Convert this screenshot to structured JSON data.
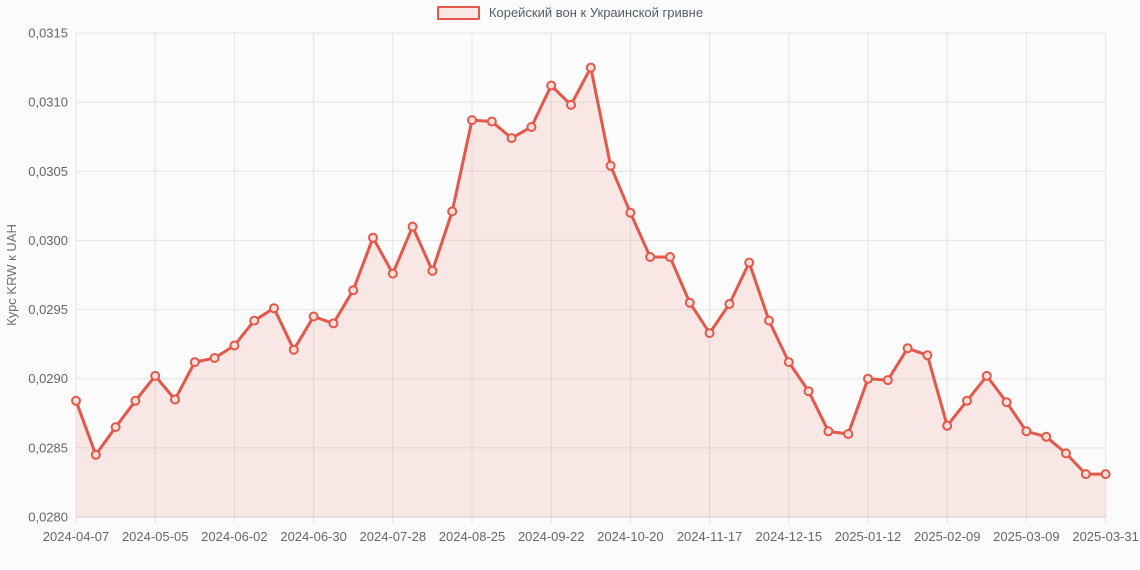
{
  "legend": {
    "label": "Корейский вон к Украинской гривне"
  },
  "colors": {
    "line": "#e3584a",
    "area_fill": "#e3584a",
    "area_opacity": 0.12,
    "marker_fill": "#f9e0da",
    "swatch_fill": "#f8e7e2",
    "grid": "#e4e4e4",
    "axis_text": "#666666"
  },
  "chart_data": {
    "type": "area",
    "title": "",
    "xlabel": "",
    "ylabel": "Курс KRW к UAH",
    "ylim": [
      0.028,
      0.0315
    ],
    "grid": true,
    "legend_position": "top",
    "x": [
      "2024-04-07",
      "2024-04-14",
      "2024-04-21",
      "2024-04-28",
      "2024-05-05",
      "2024-05-12",
      "2024-05-19",
      "2024-05-26",
      "2024-06-02",
      "2024-06-09",
      "2024-06-16",
      "2024-06-23",
      "2024-06-30",
      "2024-07-07",
      "2024-07-14",
      "2024-07-21",
      "2024-07-28",
      "2024-08-04",
      "2024-08-11",
      "2024-08-18",
      "2024-08-25",
      "2024-09-01",
      "2024-09-08",
      "2024-09-15",
      "2024-09-22",
      "2024-09-29",
      "2024-10-06",
      "2024-10-13",
      "2024-10-20",
      "2024-10-27",
      "2024-11-03",
      "2024-11-10",
      "2024-11-17",
      "2024-11-24",
      "2024-12-01",
      "2024-12-08",
      "2024-12-15",
      "2024-12-22",
      "2024-12-29",
      "2025-01-05",
      "2025-01-12",
      "2025-01-19",
      "2025-01-26",
      "2025-02-02",
      "2025-02-09",
      "2025-02-16",
      "2025-02-23",
      "2025-03-02",
      "2025-03-09",
      "2025-03-16",
      "2025-03-23",
      "2025-03-30",
      "2025-03-31"
    ],
    "series": [
      {
        "name": "Корейский вон к Украинской гривне",
        "values": [
          0.02884,
          0.02845,
          0.02865,
          0.02884,
          0.02902,
          0.02885,
          0.02912,
          0.02915,
          0.02924,
          0.02942,
          0.02951,
          0.02921,
          0.02945,
          0.0294,
          0.02964,
          0.03002,
          0.02976,
          0.0301,
          0.02978,
          0.03021,
          0.03087,
          0.03086,
          0.03074,
          0.03082,
          0.03112,
          0.03098,
          0.03125,
          0.03054,
          0.0302,
          0.02988,
          0.02988,
          0.02955,
          0.02933,
          0.02954,
          0.02984,
          0.02942,
          0.02912,
          0.02891,
          0.02862,
          0.0286,
          0.029,
          0.02899,
          0.02922,
          0.02917,
          0.02866,
          0.02884,
          0.02902,
          0.02883,
          0.02862,
          0.02858,
          0.02846,
          0.02831,
          0.02831
        ]
      }
    ],
    "y_ticks": [
      {
        "value": 0.0315,
        "label": "0,0315"
      },
      {
        "value": 0.031,
        "label": "0,0310"
      },
      {
        "value": 0.0305,
        "label": "0,0305"
      },
      {
        "value": 0.03,
        "label": "0,0300"
      },
      {
        "value": 0.0295,
        "label": "0,0295"
      },
      {
        "value": 0.029,
        "label": "0,0290"
      },
      {
        "value": 0.0285,
        "label": "0,0285"
      },
      {
        "value": 0.028,
        "label": "0,0280"
      }
    ],
    "x_ticks": [
      {
        "index": 0,
        "label": "2024-04-07"
      },
      {
        "index": 4,
        "label": "2024-05-05"
      },
      {
        "index": 8,
        "label": "2024-06-02"
      },
      {
        "index": 12,
        "label": "2024-06-30"
      },
      {
        "index": 16,
        "label": "2024-07-28"
      },
      {
        "index": 20,
        "label": "2024-08-25"
      },
      {
        "index": 24,
        "label": "2024-09-22"
      },
      {
        "index": 28,
        "label": "2024-10-20"
      },
      {
        "index": 32,
        "label": "2024-11-17"
      },
      {
        "index": 36,
        "label": "2024-12-15"
      },
      {
        "index": 40,
        "label": "2025-01-12"
      },
      {
        "index": 44,
        "label": "2025-02-09"
      },
      {
        "index": 48,
        "label": "2025-03-09"
      },
      {
        "index": 52,
        "label": "2025-03-31"
      }
    ]
  }
}
